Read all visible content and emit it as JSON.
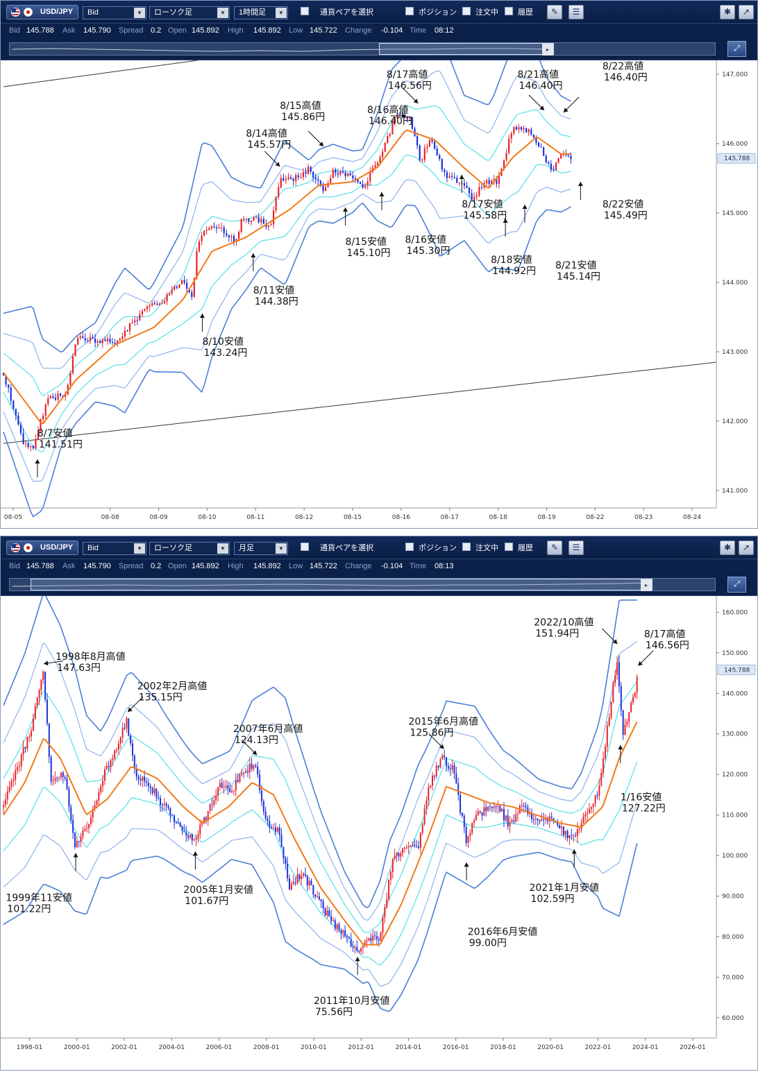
{
  "top_panel": {
    "toolbar": {
      "pair": "USD/JPY",
      "price_type": "Bid",
      "chart_kind": "ローソク足",
      "timeframe": "1時間足",
      "select_pair": "通貨ペアを選択",
      "position": "ポジション",
      "order": "注文中",
      "history": "履歴"
    },
    "info": {
      "bid_key": "Bid",
      "bid": "145.788",
      "ask_key": "Ask",
      "ask": "145.790",
      "spread_key": "Spread",
      "spread": "0.2",
      "open_key": "Open",
      "open": "145.892",
      "high_key": "High",
      "high": "145.892",
      "low_key": "Low",
      "low": "145.722",
      "change_key": "Change",
      "change": "-0.104",
      "time_key": "Time",
      "time": "08:12"
    }
  },
  "bottom_panel": {
    "toolbar": {
      "pair": "USD/JPY",
      "price_type": "Bid",
      "chart_kind": "ローソク足",
      "timeframe": "月足",
      "select_pair": "通貨ペアを選択",
      "position": "ポジション",
      "order": "注文中",
      "history": "履歴"
    },
    "info": {
      "bid_key": "Bid",
      "bid": "145.788",
      "ask_key": "Ask",
      "ask": "145.790",
      "spread_key": "Spread",
      "spread": "0.2",
      "open_key": "Open",
      "open": "145.892",
      "high_key": "High",
      "high": "145.892",
      "low_key": "Low",
      "low": "145.722",
      "change_key": "Change",
      "change": "-0.104",
      "time_key": "Time",
      "time": "08:13"
    }
  },
  "colors": {
    "up_candle": "#e8202a",
    "down_candle": "#1d2fd8",
    "band_outer": "#4a7fd6",
    "band_mid": "#8db3ec",
    "band_inner": "#52e0e8",
    "center_line": "#f07a1a",
    "price_tag_bg": "#dce8f7"
  },
  "chart_data": [
    {
      "type": "candlestick",
      "timeframe": "1時間足",
      "x_ticks": [
        "08-05",
        "08-08",
        "08-09",
        "08-10",
        "08-11",
        "08-12",
        "08-15",
        "08-16",
        "08-17",
        "08-18",
        "08-19",
        "08-22",
        "08-23",
        "08-24"
      ],
      "x_tick_pos": [
        0.5,
        2.5,
        3.5,
        4.5,
        5.5,
        6.5,
        7.5,
        8.5,
        9.5,
        10.5,
        11.5,
        12.5,
        13.5,
        14.5
      ],
      "x_range": [
        0.3,
        15.0
      ],
      "y_ticks": [
        "147.000",
        "146.000",
        "145.000",
        "144.000",
        "143.000",
        "142.000",
        "141.000"
      ],
      "ylim": [
        140.75,
        147.2
      ],
      "current_price": "145.788",
      "anchors": [
        [
          0.3,
          142.7
        ],
        [
          0.7,
          141.7
        ],
        [
          0.9,
          141.6
        ],
        [
          1.2,
          142.3
        ],
        [
          1.6,
          142.4
        ],
        [
          1.8,
          143.2
        ],
        [
          2.3,
          143.15
        ],
        [
          2.6,
          143.15
        ],
        [
          3.2,
          143.6
        ],
        [
          3.6,
          143.75
        ],
        [
          4.0,
          144.05
        ],
        [
          4.2,
          143.8
        ],
        [
          4.3,
          144.6
        ],
        [
          4.5,
          144.8
        ],
        [
          4.8,
          144.75
        ],
        [
          5.1,
          144.6
        ],
        [
          5.2,
          144.9
        ],
        [
          5.6,
          144.9
        ],
        [
          5.8,
          144.8
        ],
        [
          6.0,
          145.5
        ],
        [
          6.4,
          145.5
        ],
        [
          6.6,
          145.65
        ],
        [
          6.9,
          145.3
        ],
        [
          7.1,
          145.6
        ],
        [
          7.4,
          145.55
        ],
        [
          7.7,
          145.35
        ],
        [
          8.1,
          145.85
        ],
        [
          8.4,
          146.4
        ],
        [
          8.7,
          146.35
        ],
        [
          8.9,
          145.75
        ],
        [
          9.1,
          146.1
        ],
        [
          9.4,
          145.55
        ],
        [
          9.7,
          145.45
        ],
        [
          10.0,
          145.2
        ],
        [
          10.2,
          145.45
        ],
        [
          10.5,
          145.45
        ],
        [
          10.8,
          146.25
        ],
        [
          11.1,
          146.2
        ],
        [
          11.4,
          145.9
        ],
        [
          11.6,
          145.6
        ],
        [
          11.8,
          145.85
        ],
        [
          12.0,
          145.8
        ]
      ],
      "band_anchors": [
        [
          0.3,
          0.45
        ],
        [
          0.9,
          0.8
        ],
        [
          1.5,
          0.35
        ],
        [
          2.2,
          0.3
        ],
        [
          2.8,
          0.55
        ],
        [
          3.3,
          0.3
        ],
        [
          4.0,
          0.55
        ],
        [
          4.4,
          0.95
        ],
        [
          5.0,
          0.5
        ],
        [
          5.6,
          0.3
        ],
        [
          6.1,
          0.55
        ],
        [
          6.6,
          0.25
        ],
        [
          7.1,
          0.3
        ],
        [
          7.7,
          0.2
        ],
        [
          8.3,
          0.6
        ],
        [
          8.8,
          0.55
        ],
        [
          9.3,
          0.85
        ],
        [
          9.8,
          0.55
        ],
        [
          10.4,
          0.65
        ],
        [
          10.9,
          0.9
        ],
        [
          11.5,
          0.5
        ],
        [
          12.0,
          0.4
        ]
      ],
      "ma_anchors": [
        [
          0.3,
          142.7
        ],
        [
          1.1,
          141.95
        ],
        [
          1.8,
          142.6
        ],
        [
          2.6,
          143.1
        ],
        [
          3.4,
          143.35
        ],
        [
          4.0,
          143.75
        ],
        [
          4.6,
          144.45
        ],
        [
          5.3,
          144.65
        ],
        [
          6.2,
          145.05
        ],
        [
          6.8,
          145.4
        ],
        [
          7.5,
          145.45
        ],
        [
          8.0,
          145.65
        ],
        [
          8.6,
          146.2
        ],
        [
          9.2,
          146.05
        ],
        [
          9.8,
          145.65
        ],
        [
          10.3,
          145.35
        ],
        [
          10.8,
          145.8
        ],
        [
          11.3,
          146.1
        ],
        [
          11.8,
          145.85
        ],
        [
          12.0,
          145.85
        ]
      ],
      "trendlines": [
        {
          "x1": 0.3,
          "y1": 146.82,
          "x2": 4.3,
          "y2": 147.2
        },
        {
          "x1": 0.3,
          "y1": 141.68,
          "x2": 15.0,
          "y2": 142.85
        }
      ],
      "annotations": [
        {
          "text": "8/7安値",
          "price": "141.51円",
          "tx": 1.0,
          "ty": 141.78,
          "ax": 1.0,
          "ay": 141.45,
          "dir": "up"
        },
        {
          "text": "8/10安値",
          "price": "143.24円",
          "tx": 4.4,
          "ty": 143.1,
          "ax": 4.4,
          "ay": 143.55,
          "dir": "up"
        },
        {
          "text": "8/11安値",
          "price": "144.38円",
          "tx": 5.45,
          "ty": 143.84,
          "ax": 5.45,
          "ay": 144.42,
          "dir": "up"
        },
        {
          "text": "8/14高値",
          "price": "145.57円",
          "tx": 5.3,
          "ty": 146.1,
          "ax": 6.0,
          "ay": 145.67,
          "dir": "down"
        },
        {
          "text": "8/15高値",
          "price": "145.86円",
          "tx": 6.0,
          "ty": 146.5,
          "ax": 6.9,
          "ay": 145.96,
          "dir": "down"
        },
        {
          "text": "8/15安値",
          "price": "145.10円",
          "tx": 7.35,
          "ty": 144.54,
          "ax": 7.35,
          "ay": 145.08,
          "dir": "up"
        },
        {
          "text": "8/16高値",
          "price": "146.40円",
          "tx": 7.8,
          "ty": 146.44,
          "ax": 8.6,
          "ay": 146.4,
          "dir": "right"
        },
        {
          "text": "8/16安値",
          "price": "145.30円",
          "tx": 8.58,
          "ty": 144.57,
          "ax": 8.1,
          "ay": 145.3,
          "dir": "up"
        },
        {
          "text": "8/17高値",
          "price": "146.56円",
          "tx": 8.2,
          "ty": 146.95,
          "ax": 8.85,
          "ay": 146.58,
          "dir": "down"
        },
        {
          "text": "8/17安値",
          "price": "145.58円",
          "tx": 9.75,
          "ty": 145.08,
          "ax": 9.75,
          "ay": 145.55,
          "dir": "up"
        },
        {
          "text": "8/18安値",
          "price": "144.92円",
          "tx": 10.35,
          "ty": 144.28,
          "ax": 10.65,
          "ay": 144.92,
          "dir": "up"
        },
        {
          "text": "8/21高値",
          "price": "146.40円",
          "tx": 10.9,
          "ty": 146.95,
          "ax": 11.45,
          "ay": 146.48,
          "dir": "down"
        },
        {
          "text": "8/21安値",
          "price": "145.14円",
          "tx": 11.68,
          "ty": 144.2,
          "ax": 11.05,
          "ay": 145.12,
          "dir": "up"
        },
        {
          "text": "8/22高値",
          "price": "146.40円",
          "tx": 12.65,
          "ty": 147.07,
          "ax": 11.85,
          "ay": 146.45,
          "dir": "down"
        },
        {
          "text": "8/22安値",
          "price": "145.49円",
          "tx": 12.65,
          "ty": 145.08,
          "ax": 12.2,
          "ay": 145.45,
          "dir": "up"
        }
      ]
    },
    {
      "type": "candlestick",
      "timeframe": "月足",
      "x_ticks": [
        "1998-01",
        "2000-01",
        "2002-01",
        "2004-01",
        "2006-01",
        "2008-01",
        "2010-01",
        "2012-01",
        "2014-01",
        "2016-01",
        "2018-01",
        "2020-01",
        "2022-01",
        "2024-01",
        "2026-01"
      ],
      "x_tick_pos": [
        1998,
        2000,
        2002,
        2004,
        2006,
        2008,
        2010,
        2012,
        2014,
        2016,
        2018,
        2020,
        2022,
        2024,
        2026
      ],
      "x_range": [
        1996.9,
        2027.0
      ],
      "y_ticks": [
        "160.000",
        "150.000",
        "140.000",
        "130.000",
        "120.000",
        "110.000",
        "100.000",
        "90.000",
        "80.000",
        "70.000",
        "60.000"
      ],
      "ylim": [
        55.0,
        164.0
      ],
      "current_price": "145.788",
      "anchors": [
        [
          1996.9,
          112
        ],
        [
          1997.5,
          122
        ],
        [
          1998.0,
          130
        ],
        [
          1998.6,
          145
        ],
        [
          1998.9,
          118
        ],
        [
          1999.5,
          120
        ],
        [
          1999.9,
          103
        ],
        [
          2000.5,
          107
        ],
        [
          2001.0,
          118
        ],
        [
          2001.4,
          123
        ],
        [
          2002.1,
          133
        ],
        [
          2002.5,
          120
        ],
        [
          2003.0,
          118
        ],
        [
          2003.7,
          112
        ],
        [
          2004.3,
          107
        ],
        [
          2004.9,
          104
        ],
        [
          2005.4,
          109
        ],
        [
          2006.0,
          117
        ],
        [
          2006.5,
          116
        ],
        [
          2007.0,
          120
        ],
        [
          2007.5,
          123
        ],
        [
          2008.0,
          108
        ],
        [
          2008.5,
          106
        ],
        [
          2009.0,
          92
        ],
        [
          2009.5,
          96
        ],
        [
          2010.0,
          91
        ],
        [
          2010.5,
          86
        ],
        [
          2011.0,
          82
        ],
        [
          2011.5,
          79
        ],
        [
          2011.85,
          77
        ],
        [
          2012.4,
          79
        ],
        [
          2012.8,
          80
        ],
        [
          2013.3,
          98
        ],
        [
          2013.9,
          103
        ],
        [
          2014.4,
          102
        ],
        [
          2014.9,
          118
        ],
        [
          2015.45,
          124
        ],
        [
          2015.9,
          121
        ],
        [
          2016.45,
          103
        ],
        [
          2016.8,
          109
        ],
        [
          2017.3,
          112
        ],
        [
          2017.8,
          112
        ],
        [
          2018.3,
          107
        ],
        [
          2018.8,
          113
        ],
        [
          2019.4,
          108
        ],
        [
          2019.9,
          109
        ],
        [
          2020.5,
          106
        ],
        [
          2020.95,
          104
        ],
        [
          2021.5,
          110
        ],
        [
          2022.0,
          115
        ],
        [
          2022.8,
          148
        ],
        [
          2023.05,
          130
        ],
        [
          2023.6,
          142
        ],
        [
          2023.65,
          145
        ]
      ],
      "band_anchors": [
        [
          1996.9,
          18
        ],
        [
          1998.6,
          24
        ],
        [
          1999.9,
          20
        ],
        [
          2001.0,
          12
        ],
        [
          2002.1,
          16
        ],
        [
          2003.7,
          12
        ],
        [
          2004.9,
          10
        ],
        [
          2006.5,
          9
        ],
        [
          2007.5,
          14
        ],
        [
          2008.8,
          20
        ],
        [
          2010.0,
          14
        ],
        [
          2011.3,
          8
        ],
        [
          2012.3,
          6
        ],
        [
          2013.2,
          14
        ],
        [
          2014.4,
          16
        ],
        [
          2015.5,
          14
        ],
        [
          2016.8,
          15
        ],
        [
          2018.0,
          9
        ],
        [
          2019.5,
          6
        ],
        [
          2020.9,
          6
        ],
        [
          2022.0,
          14
        ],
        [
          2022.9,
          26
        ],
        [
          2023.65,
          20
        ]
      ],
      "ma_anchors": [
        [
          1996.9,
          110
        ],
        [
          1997.8,
          118
        ],
        [
          1998.6,
          129
        ],
        [
          1999.3,
          124
        ],
        [
          2000.4,
          110
        ],
        [
          2001.3,
          114
        ],
        [
          2002.3,
          122
        ],
        [
          2003.4,
          119
        ],
        [
          2004.5,
          112
        ],
        [
          2005.3,
          108
        ],
        [
          2006.4,
          112
        ],
        [
          2007.4,
          118
        ],
        [
          2008.3,
          115
        ],
        [
          2009.2,
          104
        ],
        [
          2010.3,
          92
        ],
        [
          2011.3,
          84
        ],
        [
          2012.1,
          78
        ],
        [
          2012.8,
          78
        ],
        [
          2013.7,
          88
        ],
        [
          2014.8,
          104
        ],
        [
          2015.6,
          117
        ],
        [
          2016.5,
          115
        ],
        [
          2017.4,
          113
        ],
        [
          2018.4,
          112
        ],
        [
          2019.4,
          110
        ],
        [
          2020.4,
          108
        ],
        [
          2021.3,
          107
        ],
        [
          2022.2,
          112
        ],
        [
          2022.9,
          124
        ],
        [
          2023.65,
          133
        ]
      ],
      "trendlines": [],
      "annotations": [
        {
          "text": "1998年8月高値",
          "price": "147.63円",
          "tx": 1999.1,
          "ty": 148.3,
          "ax": 1998.6,
          "ay": 147.3,
          "dir": "left"
        },
        {
          "text": "1999年11安値",
          "price": "101.22円",
          "tx": 1997.0,
          "ty": 88.8,
          "ax": 1999.95,
          "ay": 100.6,
          "dir": "up"
        },
        {
          "text": "2002年2月高値",
          "price": "135.15円",
          "tx": 2002.55,
          "ty": 141.0,
          "ax": 2002.15,
          "ay": 135.4,
          "dir": "down"
        },
        {
          "text": "2005年1月安値",
          "price": "101.67円",
          "tx": 2004.5,
          "ty": 90.8,
          "ax": 2005.0,
          "ay": 101.0,
          "dir": "up"
        },
        {
          "text": "2007年6月高値",
          "price": "124.13円",
          "tx": 2006.6,
          "ty": 130.5,
          "ax": 2007.6,
          "ay": 124.8,
          "dir": "down"
        },
        {
          "text": "2011年10月安値",
          "price": "75.56円",
          "tx": 2010.0,
          "ty": 63.4,
          "ax": 2011.85,
          "ay": 75.0,
          "dir": "up"
        },
        {
          "text": "2015年6月高値",
          "price": "125.86円",
          "tx": 2014.0,
          "ty": 132.3,
          "ax": 2015.5,
          "ay": 126.3,
          "dir": "down"
        },
        {
          "text": "2016年6月安値",
          "price": "99.00円",
          "tx": 2016.5,
          "ty": 80.4,
          "ax": 2016.45,
          "ay": 98.3,
          "dir": "up"
        },
        {
          "text": "2021年1月安値",
          "price": "102.59円",
          "tx": 2019.1,
          "ty": 91.3,
          "ax": 2021.0,
          "ay": 101.5,
          "dir": "up"
        },
        {
          "text": "2022/10高値",
          "price": "151.94円",
          "tx": 2019.3,
          "ty": 156.7,
          "ax": 2022.82,
          "ay": 152.2,
          "dir": "down"
        },
        {
          "text": "8/17高値",
          "price": "146.56円",
          "tx": 2023.95,
          "ty": 153.8,
          "ax": 2023.7,
          "ay": 146.8,
          "dir": "down"
        },
        {
          "text": "1/16安値",
          "price": "127.22円",
          "tx": 2022.95,
          "ty": 113.6,
          "ax": 2022.95,
          "ay": 127.2,
          "dir": "up"
        }
      ]
    }
  ]
}
